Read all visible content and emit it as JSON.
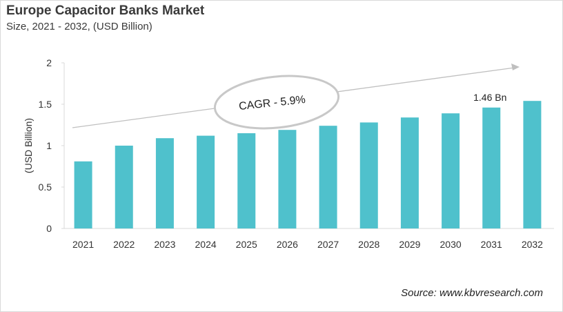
{
  "chart_data": {
    "type": "bar",
    "title": "Europe Capacitor Banks Market",
    "subtitle": "Size, 2021 - 2032, (USD Billion)",
    "xlabel": "",
    "ylabel": "(USD Billion)",
    "categories": [
      "2021",
      "2022",
      "2023",
      "2024",
      "2025",
      "2026",
      "2027",
      "2028",
      "2029",
      "2030",
      "2031",
      "2032"
    ],
    "values": [
      0.81,
      1.0,
      1.09,
      1.12,
      1.15,
      1.19,
      1.24,
      1.28,
      1.34,
      1.39,
      1.46,
      1.54
    ],
    "ylim": [
      0,
      2
    ],
    "yticks": [
      "0",
      "0.5",
      "1",
      "1.5",
      "2"
    ],
    "grid": false,
    "bar_color": "#4fc1cc",
    "annotations": {
      "cagr": "CAGR - 5.9%",
      "bar_label": "1.46 Bn",
      "bar_label_category": "2031"
    }
  },
  "source": "Source: www.kbvresearch.com"
}
